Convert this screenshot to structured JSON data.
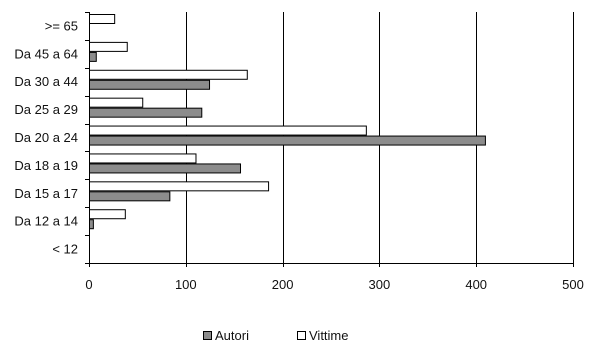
{
  "chart_data": {
    "type": "bar",
    "orientation": "horizontal",
    "categories": [
      "< 12",
      "Da 12 a 14",
      "Da 15 a 17",
      "Da 18 a 19",
      "Da 20 a 24",
      "Da 25 a 29",
      "Da 30 a 44",
      "Da 45 a 64",
      ">= 65"
    ],
    "series": [
      {
        "name": "Autori",
        "color": "#8c8c8c",
        "values": [
          0,
          4,
          83,
          156,
          409,
          116,
          124,
          7,
          0
        ]
      },
      {
        "name": "Vittime",
        "color": "#ffffff",
        "values": [
          0,
          37,
          185,
          110,
          286,
          55,
          163,
          39,
          26
        ]
      }
    ],
    "xlim": [
      0,
      500
    ],
    "xticks": [
      0,
      100,
      200,
      300,
      400,
      500
    ],
    "grid": true,
    "legend_position": "bottom"
  }
}
